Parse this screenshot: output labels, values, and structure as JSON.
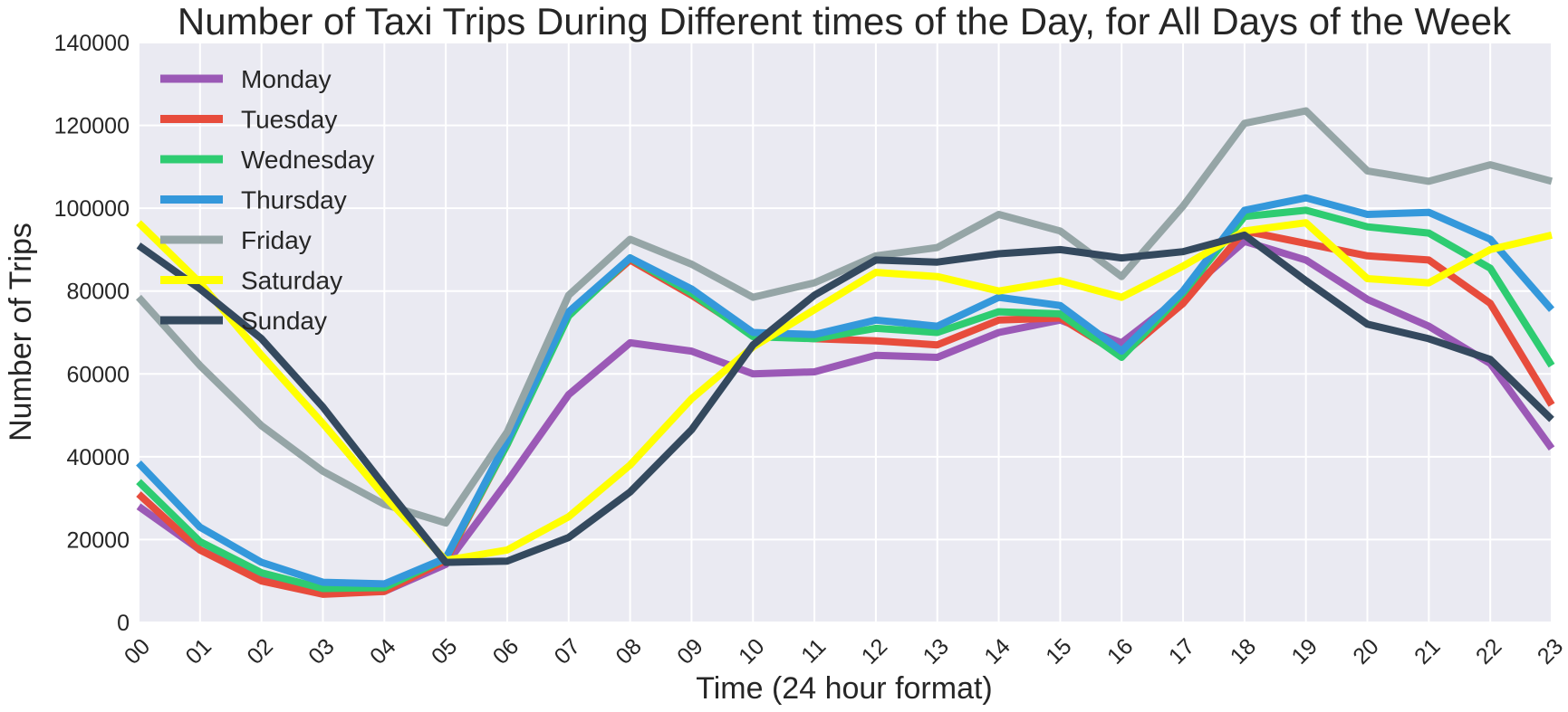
{
  "chart_data": {
    "type": "line",
    "title": "Number of Taxi Trips During Different times of the Day, for All Days of the Week",
    "xlabel": "Time (24 hour format)",
    "ylabel": "Number of Trips",
    "categories": [
      "00",
      "01",
      "02",
      "03",
      "04",
      "05",
      "06",
      "07",
      "08",
      "09",
      "10",
      "11",
      "12",
      "13",
      "14",
      "15",
      "16",
      "17",
      "18",
      "19",
      "20",
      "21",
      "22",
      "23"
    ],
    "ylim": [
      0,
      140000
    ],
    "yticks": [
      "0",
      "20000",
      "40000",
      "60000",
      "80000",
      "100000",
      "120000",
      "140000"
    ],
    "grid": true,
    "legend_position": "top-left",
    "series": [
      {
        "name": "Monday",
        "color": "#9b59b6",
        "values": [
          28000,
          17500,
          10500,
          7500,
          7500,
          14000,
          34000,
          55000,
          67500,
          65500,
          60000,
          60500,
          64500,
          64000,
          70000,
          73000,
          67500,
          79000,
          92000,
          87500,
          78000,
          71500,
          62500,
          42000
        ]
      },
      {
        "name": "Tuesday",
        "color": "#e74c3c",
        "values": [
          31000,
          17500,
          10000,
          6800,
          7500,
          15000,
          43000,
          74500,
          87500,
          79000,
          69500,
          68500,
          68000,
          67000,
          73000,
          73500,
          64500,
          77000,
          94500,
          91500,
          88500,
          87500,
          77000,
          52500
        ]
      },
      {
        "name": "Wednesday",
        "color": "#2ecc71",
        "values": [
          34000,
          19500,
          12000,
          8200,
          8400,
          15500,
          43000,
          74000,
          88000,
          79500,
          69000,
          68500,
          71000,
          70000,
          75000,
          74500,
          64000,
          79500,
          98000,
          99500,
          95500,
          94000,
          85500,
          62000
        ]
      },
      {
        "name": "Thursday",
        "color": "#3498db",
        "values": [
          38500,
          23000,
          14500,
          9700,
          9300,
          15500,
          44000,
          75000,
          88000,
          80500,
          70000,
          69500,
          73000,
          71500,
          78500,
          76500,
          65500,
          80000,
          99500,
          102500,
          98500,
          99000,
          92500,
          75500
        ]
      },
      {
        "name": "Friday",
        "color": "#95a5a6",
        "values": [
          78500,
          62000,
          47500,
          36500,
          28500,
          24000,
          46000,
          79000,
          92500,
          86500,
          78500,
          82000,
          88500,
          90500,
          98500,
          94500,
          83500,
          100500,
          120500,
          123500,
          109000,
          106500,
          110500,
          106500
        ]
      },
      {
        "name": "Saturday",
        "color": "#ffff00",
        "values": [
          96500,
          82000,
          64500,
          48000,
          30500,
          15000,
          17500,
          25500,
          38000,
          54000,
          66500,
          75500,
          84500,
          83500,
          80000,
          82500,
          78500,
          86000,
          94500,
          96500,
          83000,
          82000,
          90000,
          93500
        ]
      },
      {
        "name": "Sunday",
        "color": "#34495e",
        "values": [
          91000,
          80500,
          68500,
          52000,
          33000,
          14500,
          14800,
          20500,
          31500,
          46500,
          67000,
          79000,
          87500,
          87000,
          89000,
          90000,
          88000,
          89500,
          93500,
          82500,
          72000,
          68500,
          63500,
          49000
        ]
      }
    ]
  }
}
